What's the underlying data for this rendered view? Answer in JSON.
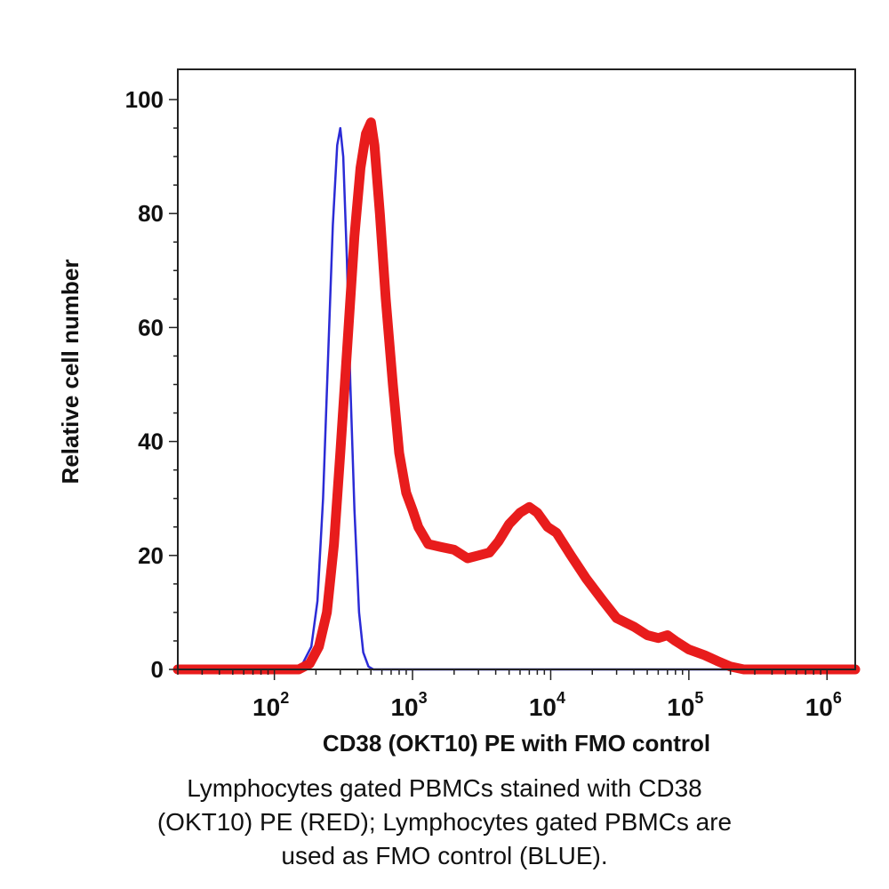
{
  "chart_data": {
    "type": "line",
    "title": "",
    "xlabel": "CD38 (OKT10) PE with FMO control",
    "ylabel": "Relative cell number",
    "x_scale": "log",
    "xlim": [
      20,
      1600000
    ],
    "ylim": [
      0,
      100
    ],
    "y_ticks": [
      0,
      20,
      40,
      60,
      80,
      100
    ],
    "x_ticks": [
      {
        "value": 100,
        "base": "10",
        "exp": "2"
      },
      {
        "value": 1000,
        "base": "10",
        "exp": "3"
      },
      {
        "value": 10000,
        "base": "10",
        "exp": "4"
      },
      {
        "value": 100000,
        "base": "10",
        "exp": "5"
      },
      {
        "value": 1000000,
        "base": "10",
        "exp": "6"
      }
    ],
    "grid": false,
    "legend": "none",
    "series": [
      {
        "color": "#2b2bd6",
        "points": [
          [
            20,
            0
          ],
          [
            130,
            0
          ],
          [
            160,
            1
          ],
          [
            185,
            4
          ],
          [
            205,
            12
          ],
          [
            225,
            30
          ],
          [
            245,
            55
          ],
          [
            265,
            78
          ],
          [
            285,
            92
          ],
          [
            300,
            95
          ],
          [
            315,
            90
          ],
          [
            335,
            72
          ],
          [
            355,
            50
          ],
          [
            380,
            28
          ],
          [
            410,
            10
          ],
          [
            440,
            3
          ],
          [
            480,
            0.5
          ],
          [
            520,
            0
          ],
          [
            1600000,
            0
          ]
        ]
      },
      {
        "color": "#e81c1c",
        "points": [
          [
            20,
            0
          ],
          [
            150,
            0
          ],
          [
            180,
            1
          ],
          [
            210,
            4
          ],
          [
            240,
            10
          ],
          [
            270,
            22
          ],
          [
            300,
            38
          ],
          [
            340,
            58
          ],
          [
            380,
            76
          ],
          [
            420,
            88
          ],
          [
            460,
            94
          ],
          [
            500,
            96
          ],
          [
            530,
            92
          ],
          [
            580,
            80
          ],
          [
            640,
            65
          ],
          [
            720,
            50
          ],
          [
            800,
            38
          ],
          [
            900,
            31
          ],
          [
            1000,
            28
          ],
          [
            1100,
            25
          ],
          [
            1300,
            22
          ],
          [
            1600,
            21.5
          ],
          [
            2000,
            21
          ],
          [
            2500,
            19.5
          ],
          [
            3000,
            20
          ],
          [
            3600,
            20.5
          ],
          [
            4200,
            22.5
          ],
          [
            5000,
            25.5
          ],
          [
            6000,
            27.5
          ],
          [
            7000,
            28.5
          ],
          [
            8000,
            27.5
          ],
          [
            9500,
            25
          ],
          [
            11000,
            24
          ],
          [
            14000,
            20
          ],
          [
            18000,
            16
          ],
          [
            24000,
            12
          ],
          [
            30000,
            9
          ],
          [
            40000,
            7.5
          ],
          [
            50000,
            6
          ],
          [
            60000,
            5.5
          ],
          [
            70000,
            6
          ],
          [
            80000,
            5
          ],
          [
            100000,
            3.5
          ],
          [
            130000,
            2.5
          ],
          [
            160000,
            1.5
          ],
          [
            200000,
            0.5
          ],
          [
            250000,
            0
          ],
          [
            1600000,
            0
          ]
        ]
      }
    ]
  },
  "caption": {
    "line1": "Lymphocytes gated PBMCs stained with CD38",
    "line2": "(OKT10) PE (RED); Lymphocytes gated PBMCs are",
    "line3": "used as FMO control (BLUE)."
  }
}
